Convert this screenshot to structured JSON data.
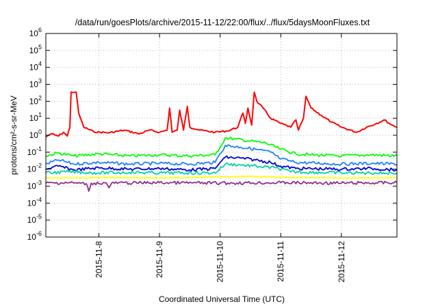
{
  "chart_data": {
    "type": "line",
    "title": "/data/run/goesPlots/archive/2015-11-12/22:00/flux/../flux/5daysMoonFluxes.txt",
    "xlabel": "Coordinated Universal Time (UTC)",
    "ylabel": "protons/cm²-s-sr-MeV",
    "x_axis": {
      "type": "time",
      "start": "2015-11-07T03:00",
      "end": "2015-11-12T22:00"
    },
    "y_axis": {
      "scale": "log",
      "min": 1e-06,
      "max": 1000000.0
    },
    "x_ticks": [
      "2015-11-8",
      "2015-11-9",
      "2015-11-10",
      "2015-11-11",
      "2015-11-12"
    ],
    "y_ticks": [
      {
        "base": "10",
        "exp": "-6"
      },
      {
        "base": "10",
        "exp": "-5"
      },
      {
        "base": "10",
        "exp": "-4"
      },
      {
        "base": "10",
        "exp": "-3"
      },
      {
        "base": "10",
        "exp": "-2"
      },
      {
        "base": "10",
        "exp": "-1"
      },
      {
        "base": "10",
        "exp": "0"
      },
      {
        "base": "10",
        "exp": "1"
      },
      {
        "base": "10",
        "exp": "2"
      },
      {
        "base": "10",
        "exp": "3"
      },
      {
        "base": "10",
        "exp": "4"
      },
      {
        "base": "10",
        "exp": "5"
      },
      {
        "base": "10",
        "exp": "6"
      }
    ],
    "grid": true,
    "series": [
      {
        "color": "#ff0000",
        "points": [
          [
            "2015-11-07T03:00",
            0.8
          ],
          [
            "2015-11-07T05:00",
            1.2
          ],
          [
            "2015-11-07T08:00",
            0.9
          ],
          [
            "2015-11-07T10:00",
            1.5
          ],
          [
            "2015-11-07T11:30",
            0.9
          ],
          [
            "2015-11-07T12:30",
            3.0
          ],
          [
            "2015-11-07T13:00",
            350
          ],
          [
            "2015-11-07T15:00",
            350
          ],
          [
            "2015-11-07T16:00",
            20
          ],
          [
            "2015-11-07T18:00",
            3.0
          ],
          [
            "2015-11-07T22:00",
            1.6
          ],
          [
            "2015-11-08T04:00",
            1.4
          ],
          [
            "2015-11-08T10:00",
            2.0
          ],
          [
            "2015-11-08T16:00",
            1.2
          ],
          [
            "2015-11-08T20:00",
            2.0
          ],
          [
            "2015-11-09T00:00",
            1.5
          ],
          [
            "2015-11-09T03:00",
            2.0
          ],
          [
            "2015-11-09T04:00",
            40
          ],
          [
            "2015-11-09T05:00",
            1.5
          ],
          [
            "2015-11-09T07:00",
            2.0
          ],
          [
            "2015-11-09T08:00",
            30
          ],
          [
            "2015-11-09T09:30",
            2.0
          ],
          [
            "2015-11-09T11:00",
            50
          ],
          [
            "2015-11-09T12:00",
            3.0
          ],
          [
            "2015-11-09T16:00",
            2.0
          ],
          [
            "2015-11-09T22:00",
            1.5
          ],
          [
            "2015-11-10T03:00",
            1.8
          ],
          [
            "2015-11-10T07:00",
            3.0
          ],
          [
            "2015-11-10T09:00",
            20
          ],
          [
            "2015-11-10T10:00",
            5.0
          ],
          [
            "2015-11-10T11:00",
            40
          ],
          [
            "2015-11-10T12:30",
            4.0
          ],
          [
            "2015-11-10T13:30",
            350
          ],
          [
            "2015-11-10T14:30",
            100
          ],
          [
            "2015-11-10T17:00",
            40
          ],
          [
            "2015-11-10T20:00",
            10
          ],
          [
            "2015-11-11T00:00",
            5.0
          ],
          [
            "2015-11-11T04:00",
            3.0
          ],
          [
            "2015-11-11T06:00",
            8.0
          ],
          [
            "2015-11-11T07:00",
            2.0
          ],
          [
            "2015-11-11T09:00",
            10
          ],
          [
            "2015-11-11T10:00",
            200
          ],
          [
            "2015-11-11T12:00",
            40
          ],
          [
            "2015-11-11T16:00",
            15
          ],
          [
            "2015-11-11T20:00",
            6.0
          ],
          [
            "2015-11-12T00:00",
            3.0
          ],
          [
            "2015-11-12T06:00",
            1.5
          ],
          [
            "2015-11-12T10:00",
            3.0
          ],
          [
            "2015-11-12T14:00",
            5.0
          ],
          [
            "2015-11-12T17:00",
            8.0
          ],
          [
            "2015-11-12T20:00",
            4.0
          ],
          [
            "2015-11-12T22:00",
            3.0
          ]
        ]
      },
      {
        "color": "#00ff00",
        "points": [
          [
            "2015-11-07T03:00",
            0.06
          ],
          [
            "2015-11-07T08:00",
            0.09
          ],
          [
            "2015-11-07T14:00",
            0.06
          ],
          [
            "2015-11-08T00:00",
            0.08
          ],
          [
            "2015-11-08T12:00",
            0.06
          ],
          [
            "2015-11-09T00:00",
            0.07
          ],
          [
            "2015-11-09T12:00",
            0.06
          ],
          [
            "2015-11-09T22:00",
            0.07
          ],
          [
            "2015-11-10T00:00",
            0.2
          ],
          [
            "2015-11-10T02:00",
            0.7
          ],
          [
            "2015-11-10T06:00",
            0.6
          ],
          [
            "2015-11-10T12:00",
            0.45
          ],
          [
            "2015-11-10T18:00",
            0.35
          ],
          [
            "2015-11-11T00:00",
            0.15
          ],
          [
            "2015-11-11T06:00",
            0.08
          ],
          [
            "2015-11-11T12:00",
            0.07
          ],
          [
            "2015-11-12T00:00",
            0.06
          ],
          [
            "2015-11-12T12:00",
            0.07
          ],
          [
            "2015-11-12T22:00",
            0.06
          ]
        ]
      },
      {
        "color": "#1e7fff",
        "points": [
          [
            "2015-11-07T03:00",
            0.02
          ],
          [
            "2015-11-07T08:00",
            0.035
          ],
          [
            "2015-11-07T14:00",
            0.02
          ],
          [
            "2015-11-08T00:00",
            0.025
          ],
          [
            "2015-11-08T12:00",
            0.02
          ],
          [
            "2015-11-09T00:00",
            0.022
          ],
          [
            "2015-11-09T12:00",
            0.02
          ],
          [
            "2015-11-09T22:00",
            0.025
          ],
          [
            "2015-11-10T00:00",
            0.08
          ],
          [
            "2015-11-10T02:00",
            0.25
          ],
          [
            "2015-11-10T08:00",
            0.2
          ],
          [
            "2015-11-10T14:00",
            0.15
          ],
          [
            "2015-11-10T20:00",
            0.1
          ],
          [
            "2015-11-11T00:00",
            0.04
          ],
          [
            "2015-11-11T06:00",
            0.025
          ],
          [
            "2015-11-12T00:00",
            0.02
          ],
          [
            "2015-11-12T12:00",
            0.022
          ],
          [
            "2015-11-12T22:00",
            0.02
          ]
        ]
      },
      {
        "color": "#0000dd",
        "points": [
          [
            "2015-11-07T03:00",
            0.01
          ],
          [
            "2015-11-07T08:00",
            0.015
          ],
          [
            "2015-11-07T14:00",
            0.009
          ],
          [
            "2015-11-08T00:00",
            0.012
          ],
          [
            "2015-11-08T12:00",
            0.01
          ],
          [
            "2015-11-09T00:00",
            0.011
          ],
          [
            "2015-11-09T12:00",
            0.009
          ],
          [
            "2015-11-09T22:00",
            0.011
          ],
          [
            "2015-11-10T00:00",
            0.025
          ],
          [
            "2015-11-10T02:00",
            0.05
          ],
          [
            "2015-11-10T08:00",
            0.045
          ],
          [
            "2015-11-10T14:00",
            0.035
          ],
          [
            "2015-11-10T20:00",
            0.025
          ],
          [
            "2015-11-11T00:00",
            0.015
          ],
          [
            "2015-11-11T06:00",
            0.011
          ],
          [
            "2015-11-12T00:00",
            0.01
          ],
          [
            "2015-11-12T12:00",
            0.011
          ],
          [
            "2015-11-12T22:00",
            0.009
          ]
        ]
      },
      {
        "color": "#00d2a0",
        "points": [
          [
            "2015-11-07T03:00",
            0.006
          ],
          [
            "2015-11-07T12:00",
            0.007
          ],
          [
            "2015-11-08T00:00",
            0.006
          ],
          [
            "2015-11-08T12:00",
            0.0065
          ],
          [
            "2015-11-09T00:00",
            0.006
          ],
          [
            "2015-11-09T22:00",
            0.006
          ],
          [
            "2015-11-10T02:00",
            0.02
          ],
          [
            "2015-11-10T08:00",
            0.018
          ],
          [
            "2015-11-10T16:00",
            0.014
          ],
          [
            "2015-11-10T22:00",
            0.012
          ],
          [
            "2015-11-11T04:00",
            0.007
          ],
          [
            "2015-11-12T00:00",
            0.006
          ],
          [
            "2015-11-12T22:00",
            0.006
          ]
        ]
      },
      {
        "color": "#ffff00",
        "points": [
          [
            "2015-11-07T03:00",
            0.003
          ],
          [
            "2015-11-08T00:00",
            0.0032
          ],
          [
            "2015-11-09T00:00",
            0.003
          ],
          [
            "2015-11-10T00:00",
            0.0035
          ],
          [
            "2015-11-10T12:00",
            0.0038
          ],
          [
            "2015-11-11T00:00",
            0.0033
          ],
          [
            "2015-11-12T00:00",
            0.003
          ],
          [
            "2015-11-12T22:00",
            0.0031
          ]
        ]
      },
      {
        "color": "#8b2e8b",
        "points": [
          [
            "2015-11-07T03:00",
            0.0015
          ],
          [
            "2015-11-07T12:00",
            0.0016
          ],
          [
            "2015-11-07T19:00",
            0.0014
          ],
          [
            "2015-11-07T20:00",
            0.0005
          ],
          [
            "2015-11-07T21:00",
            0.0015
          ],
          [
            "2015-11-08T03:00",
            0.0015
          ],
          [
            "2015-11-08T04:00",
            0.0008
          ],
          [
            "2015-11-08T05:00",
            0.0015
          ],
          [
            "2015-11-09T00:00",
            0.0016
          ],
          [
            "2015-11-10T00:00",
            0.0015
          ],
          [
            "2015-11-11T00:00",
            0.0016
          ],
          [
            "2015-11-12T00:00",
            0.0015
          ],
          [
            "2015-11-12T22:00",
            0.0016
          ]
        ]
      }
    ]
  }
}
